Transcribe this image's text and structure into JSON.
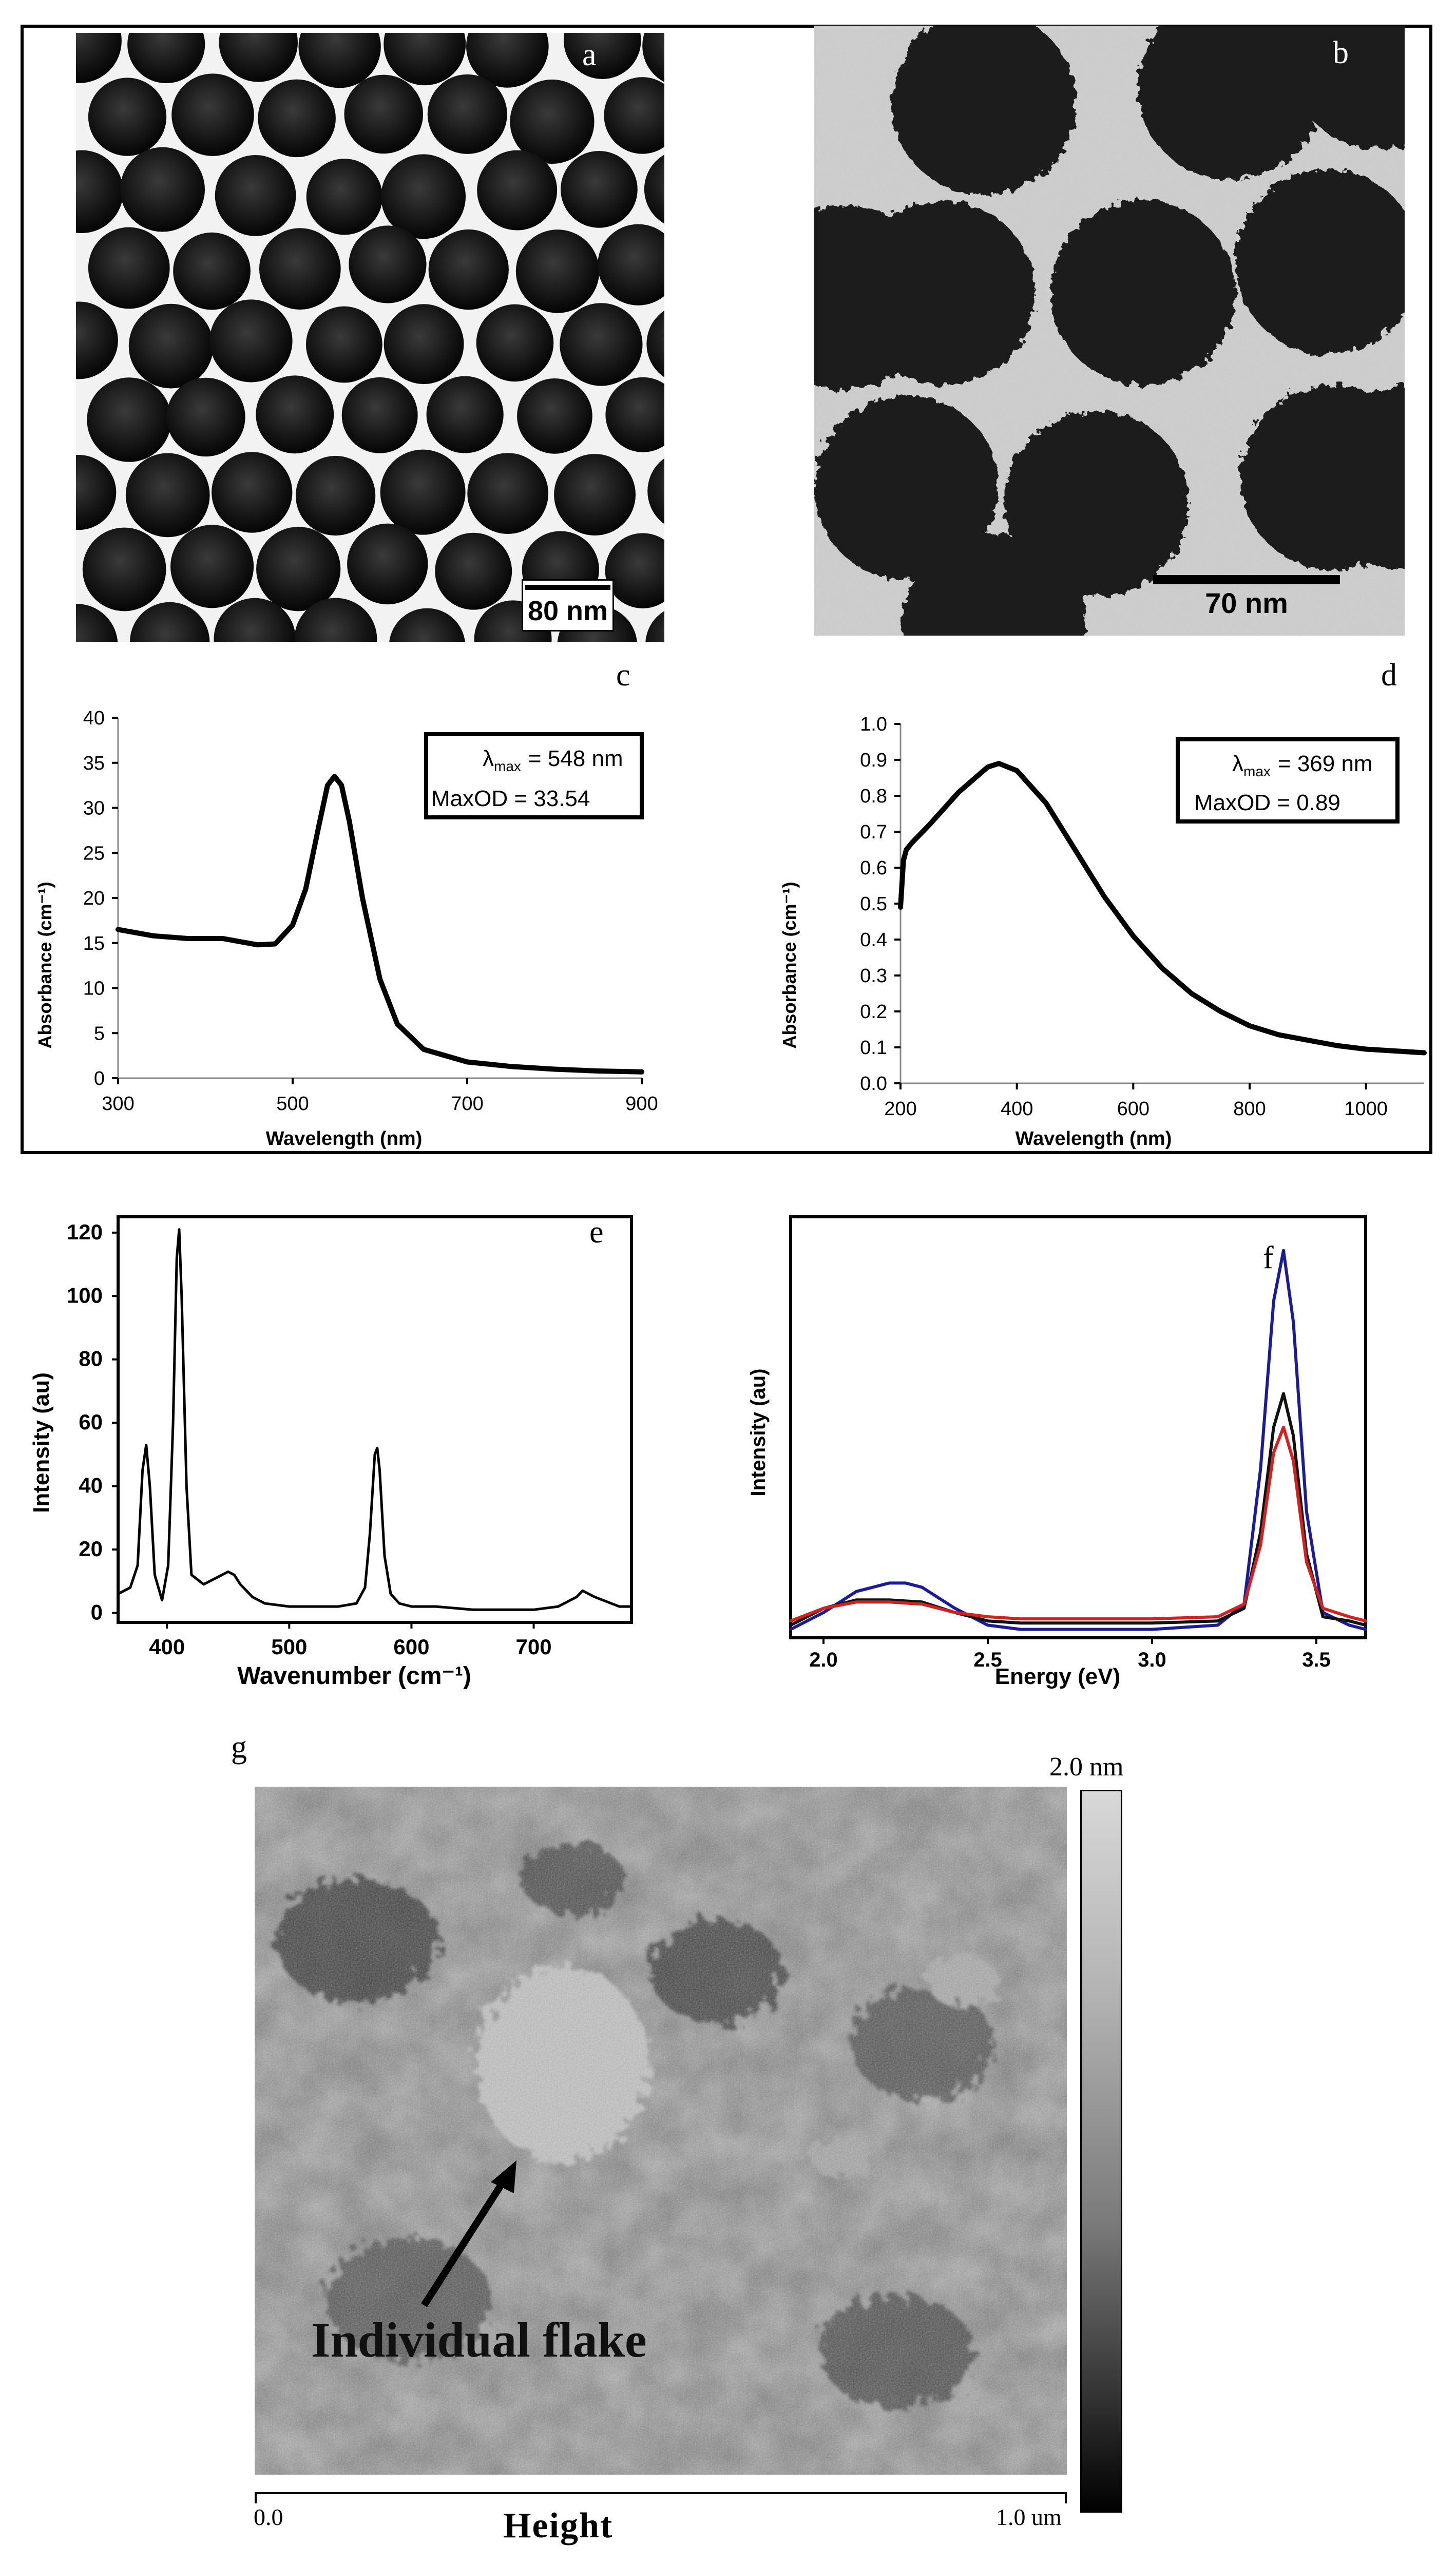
{
  "panels": {
    "a": {
      "letter": "a",
      "scale_bar": "80 nm"
    },
    "b": {
      "letter": "b",
      "scale_bar": "70 nm"
    },
    "c": {
      "letter": "c"
    },
    "d": {
      "letter": "d"
    },
    "e": {
      "letter": "e"
    },
    "f": {
      "letter": "f"
    },
    "g": {
      "letter": "g"
    }
  },
  "spectrum_c": {
    "ylabel": "Absorbance (cm⁻¹)",
    "xlabel": "Wavelength (nm)",
    "legend_lambda_label": "λ",
    "legend_lambda_sub": "max",
    "legend_lambda_value": "= 548 nm",
    "legend_od": "MaxOD =  33.54"
  },
  "spectrum_d": {
    "ylabel": "Absorbance (cm⁻¹)",
    "xlabel": "Wavelength (nm)",
    "legend_lambda_label": "λ",
    "legend_lambda_sub": "max",
    "legend_lambda_value": "= 369 nm",
    "legend_od": "MaxOD = 0.89"
  },
  "spectrum_e": {
    "ylabel": "Intensity (au)",
    "xlabel": "Wavenumber (cm⁻¹)"
  },
  "spectrum_f": {
    "ylabel": "Intensity (au)",
    "xlabel": "Energy (eV)"
  },
  "afm": {
    "colorbar_max": "2.0 nm",
    "x_start": "0.0",
    "x_end": "1.0 um",
    "label": "Height",
    "annotation": "Individual flake"
  },
  "chart_data": [
    {
      "panel": "c",
      "type": "line",
      "xlabel": "Wavelength (nm)",
      "ylabel": "Absorbance (cm⁻¹)",
      "xlim": [
        300,
        900
      ],
      "ylim": [
        0,
        40
      ],
      "xticks": [
        300,
        500,
        700,
        900
      ],
      "yticks": [
        0,
        5,
        10,
        15,
        20,
        25,
        30,
        35,
        40
      ],
      "series": [
        {
          "x": [
            300,
            340,
            380,
            420,
            460,
            480,
            500,
            515,
            530,
            540,
            548,
            556,
            565,
            580,
            600,
            620,
            650,
            700,
            750,
            800,
            850,
            900
          ],
          "y": [
            16.5,
            15.8,
            15.5,
            15.5,
            14.8,
            14.9,
            17.0,
            21.0,
            28.0,
            32.5,
            33.5,
            32.5,
            28.5,
            20.0,
            11.0,
            6.0,
            3.2,
            1.8,
            1.3,
            1.0,
            0.8,
            0.7
          ]
        }
      ]
    },
    {
      "panel": "d",
      "type": "line",
      "xlabel": "Wavelength (nm)",
      "ylabel": "Absorbance (cm⁻¹)",
      "xlim": [
        200,
        1100
      ],
      "ylim": [
        0.0,
        1.0
      ],
      "xticks": [
        200,
        400,
        600,
        800,
        1000
      ],
      "yticks": [
        0.0,
        0.1,
        0.2,
        0.3,
        0.4,
        0.5,
        0.6,
        0.7,
        0.8,
        0.9,
        1.0
      ],
      "series": [
        {
          "x": [
            200,
            205,
            210,
            220,
            250,
            300,
            350,
            369,
            400,
            450,
            500,
            550,
            600,
            650,
            700,
            750,
            800,
            850,
            900,
            950,
            1000,
            1050,
            1100
          ],
          "y": [
            0.49,
            0.62,
            0.65,
            0.67,
            0.72,
            0.81,
            0.88,
            0.89,
            0.87,
            0.78,
            0.65,
            0.52,
            0.41,
            0.32,
            0.25,
            0.2,
            0.16,
            0.135,
            0.12,
            0.105,
            0.095,
            0.09,
            0.085
          ]
        }
      ]
    },
    {
      "panel": "e",
      "type": "line",
      "xlabel": "Wavenumber (cm⁻¹)",
      "ylabel": "Intensity (au)",
      "xlim": [
        360,
        780
      ],
      "ylim": [
        -3,
        125
      ],
      "xticks": [
        400,
        500,
        600,
        700
      ],
      "yticks": [
        0,
        20,
        40,
        60,
        80,
        100,
        120
      ],
      "series": [
        {
          "x": [
            360,
            370,
            376,
            380,
            383,
            386,
            390,
            396,
            401,
            405,
            408,
            410,
            412,
            416,
            420,
            430,
            440,
            450,
            455,
            460,
            470,
            480,
            500,
            520,
            540,
            555,
            562,
            566,
            570,
            572,
            574,
            578,
            583,
            590,
            600,
            620,
            650,
            680,
            700,
            720,
            735,
            740,
            750,
            770,
            780
          ],
          "y": [
            6,
            8,
            15,
            45,
            53,
            40,
            12,
            4,
            15,
            60,
            112,
            121,
            100,
            40,
            12,
            9,
            11,
            13,
            12,
            9,
            5,
            3,
            2,
            2,
            2,
            3,
            8,
            25,
            50,
            52,
            45,
            18,
            6,
            3,
            2,
            2,
            1,
            1,
            1,
            2,
            5,
            7,
            5,
            2,
            2
          ]
        }
      ]
    },
    {
      "panel": "f",
      "type": "line",
      "xlabel": "Energy (eV)",
      "ylabel": "Intensity (au)",
      "xlim": [
        1.9,
        3.65
      ],
      "ylim": [
        0,
        100
      ],
      "xticks": [
        2.0,
        2.5,
        3.0,
        3.5
      ],
      "colors": [
        "#1a1a9a",
        "#111111",
        "#d42020"
      ],
      "series": [
        {
          "x": [
            1.9,
            2.0,
            2.1,
            2.2,
            2.25,
            2.3,
            2.4,
            2.5,
            2.6,
            2.8,
            3.0,
            3.2,
            3.28,
            3.33,
            3.37,
            3.4,
            3.43,
            3.47,
            3.52,
            3.6,
            3.65
          ],
          "y": [
            2,
            6,
            11,
            13,
            13,
            12,
            7,
            3,
            2,
            2,
            2,
            3,
            8,
            40,
            80,
            92,
            75,
            30,
            6,
            3,
            2
          ]
        },
        {
          "x": [
            1.9,
            2.0,
            2.1,
            2.2,
            2.3,
            2.4,
            2.5,
            2.6,
            2.8,
            3.0,
            3.2,
            3.28,
            3.33,
            3.37,
            3.4,
            3.43,
            3.47,
            3.52,
            3.6,
            3.65
          ],
          "y": [
            3,
            7,
            9,
            9,
            8.5,
            6,
            4,
            3.5,
            3.5,
            3.5,
            4,
            7,
            25,
            50,
            58,
            48,
            20,
            5,
            4,
            3
          ]
        },
        {
          "x": [
            1.9,
            2.0,
            2.1,
            2.2,
            2.3,
            2.4,
            2.5,
            2.6,
            2.8,
            3.0,
            3.2,
            3.28,
            3.33,
            3.37,
            3.4,
            3.43,
            3.47,
            3.52,
            3.6,
            3.65
          ],
          "y": [
            4,
            7,
            8.5,
            8.5,
            8,
            6,
            5,
            4.5,
            4.5,
            4.5,
            5,
            8,
            22,
            44,
            50,
            42,
            18,
            7,
            5,
            4
          ]
        }
      ]
    }
  ]
}
